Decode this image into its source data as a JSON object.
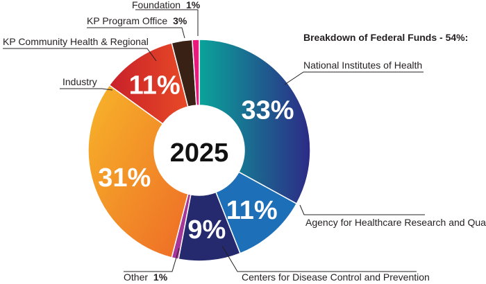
{
  "chart_data": {
    "type": "donut",
    "center_label": "2025",
    "header": "Breakdown of Federal Funds - 54%:",
    "slices": [
      {
        "name": "National Institutes of Health",
        "value": 33,
        "pct_text": "33%",
        "color": "#1e8a9c",
        "color2": "#2d2a86"
      },
      {
        "name": "Agency for Healthcare Research and Quality",
        "value": 11,
        "pct_text": "11%",
        "color": "#1d6fb8"
      },
      {
        "name": "Centers for Disease Control and Prevention",
        "value": 9,
        "pct_text": "9%",
        "color": "#252a6e"
      },
      {
        "name": "Other",
        "value": 1,
        "pct_text": "1%",
        "color": "#a6379a"
      },
      {
        "name": "Industry",
        "value": 31,
        "pct_text": "31%",
        "color": "#f5a123",
        "color2": "#ef6a27"
      },
      {
        "name": "KP Community Health & Regional",
        "value": 11,
        "pct_text": "11%",
        "color": "#e03a2a",
        "color2": "#c1232a"
      },
      {
        "name": "KP Program Office",
        "value": 3,
        "pct_text": "3%",
        "color": "#3a2116"
      },
      {
        "name": "Foundation",
        "value": 1,
        "pct_text": "1%",
        "color": "#e8197b"
      }
    ]
  }
}
